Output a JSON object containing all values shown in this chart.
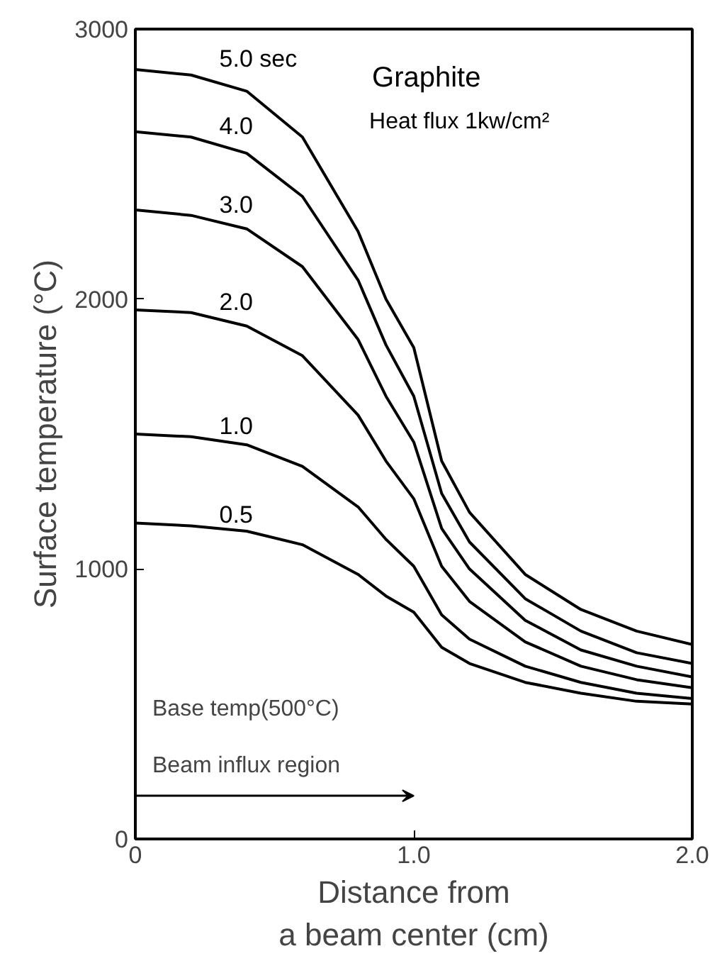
{
  "chart_data": {
    "type": "line",
    "title": "Graphite",
    "subtitle": "Heat flux 1kw/cm²",
    "xlabel": "Distance from\na beam center (cm)",
    "ylabel": "Surface temperature (°C)",
    "x": [
      0,
      0.2,
      0.4,
      0.6,
      0.8,
      0.9,
      1.0,
      1.1,
      1.2,
      1.4,
      1.6,
      1.8,
      2.0
    ],
    "series": [
      {
        "name": "5.0 sec",
        "color": "#000000",
        "values": [
          2850,
          2830,
          2770,
          2600,
          2250,
          2000,
          1820,
          1400,
          1210,
          980,
          850,
          770,
          720
        ]
      },
      {
        "name": "4.0",
        "color": "#000000",
        "values": [
          2620,
          2600,
          2540,
          2380,
          2070,
          1830,
          1640,
          1280,
          1100,
          890,
          770,
          690,
          650
        ]
      },
      {
        "name": "3.0",
        "color": "#000000",
        "values": [
          2330,
          2310,
          2260,
          2120,
          1850,
          1640,
          1470,
          1150,
          1000,
          810,
          700,
          640,
          600
        ]
      },
      {
        "name": "2.0",
        "color": "#000000",
        "values": [
          1960,
          1950,
          1900,
          1790,
          1570,
          1400,
          1260,
          1010,
          880,
          730,
          640,
          590,
          560
        ]
      },
      {
        "name": "1.0",
        "color": "#000000",
        "values": [
          1500,
          1490,
          1460,
          1380,
          1230,
          1110,
          1010,
          830,
          740,
          640,
          580,
          540,
          520
        ]
      },
      {
        "name": "0.5",
        "color": "#000000",
        "values": [
          1170,
          1160,
          1140,
          1090,
          980,
          900,
          840,
          710,
          650,
          580,
          540,
          510,
          500
        ]
      }
    ],
    "annotations": [
      "Base temp(500°C)",
      "Beam influx region"
    ],
    "xlim": [
      0,
      2.0
    ],
    "ylim": [
      0,
      3000
    ],
    "xticks": [
      0,
      {
        "value": 1.0,
        "label": "1.0"
      },
      {
        "value": 2.0,
        "label": "2.0"
      }
    ],
    "yticks": [
      0,
      1000,
      2000,
      3000
    ],
    "grid": false,
    "legend": false,
    "line_style": "solid",
    "marker": "none"
  }
}
